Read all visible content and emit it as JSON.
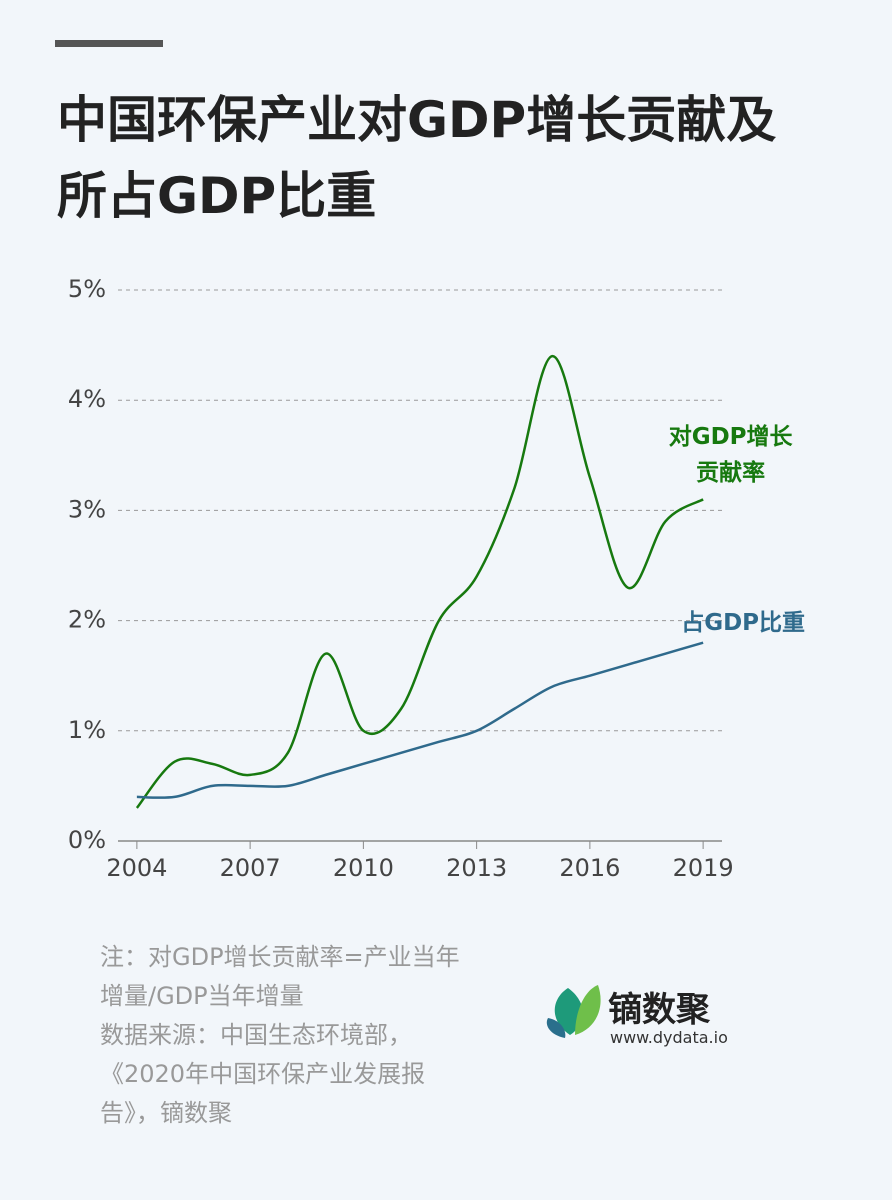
{
  "chart_data": {
    "type": "line",
    "title": "中国环保产业对GDP增长贡献及所占GDP比重",
    "x": [
      2004,
      2005,
      2006,
      2007,
      2008,
      2009,
      2010,
      2011,
      2012,
      2013,
      2014,
      2015,
      2016,
      2017,
      2018,
      2019
    ],
    "series": [
      {
        "name": "对GDP增长贡献率",
        "color": "#17790f",
        "values": [
          0.3,
          0.72,
          0.7,
          0.6,
          0.8,
          1.7,
          1.0,
          1.2,
          2.0,
          2.4,
          3.2,
          4.4,
          3.3,
          2.3,
          2.9,
          3.1
        ]
      },
      {
        "name": "占GDP比重",
        "color": "#2f6a8c",
        "values": [
          0.4,
          0.4,
          0.5,
          0.5,
          0.5,
          0.6,
          0.7,
          0.8,
          0.9,
          1.0,
          1.2,
          1.4,
          1.5,
          1.6,
          1.7,
          1.8
        ]
      }
    ],
    "xlim": [
      2003.5,
      2019.5
    ],
    "xticks": [
      2004,
      2007,
      2010,
      2013,
      2016,
      2019
    ],
    "ylim": [
      0,
      5
    ],
    "yticks": [
      {
        "value": 0,
        "label": "0%"
      },
      {
        "value": 1,
        "label": "1%"
      },
      {
        "value": 2,
        "label": "2%"
      },
      {
        "value": 3,
        "label": "3%"
      },
      {
        "value": 4,
        "label": "4%"
      },
      {
        "value": 5,
        "label": "5%"
      }
    ],
    "grid": true,
    "note": "注：对GDP增长贡献率=产业当年增量/GDP当年增量",
    "source": "数据来源：中国生态环境部，《2020年中国环保产业发展报告》，镝数聚",
    "brand": "镝数聚",
    "website": "www.dydata.io"
  }
}
